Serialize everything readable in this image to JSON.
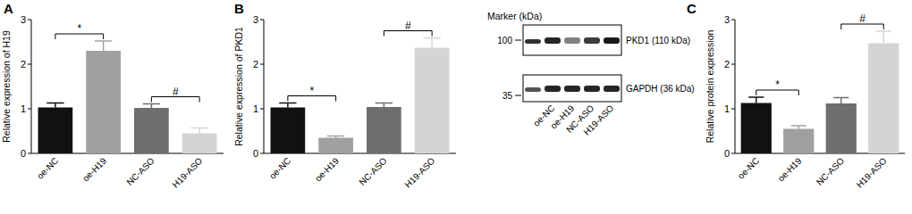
{
  "chart_data": [
    {
      "type": "bar",
      "title": "A",
      "y_label": "Relative expression of H19",
      "categories": [
        "oe-NC",
        "oe-H19",
        "NC-ASO",
        "H19-ASO"
      ],
      "values": [
        1.03,
        2.3,
        1.02,
        0.45
      ],
      "errors": [
        0.1,
        0.22,
        0.09,
        0.12
      ],
      "colors": [
        "#111111",
        "#a0a0a0",
        "#6e6e6e",
        "#d4d4d4"
      ],
      "ylim": [
        0,
        3
      ],
      "yticks": [
        0,
        1,
        2,
        3
      ],
      "annotations": [
        {
          "text": "*",
          "from": 0,
          "to": 1
        },
        {
          "text": "#",
          "from": 2,
          "to": 3
        }
      ]
    },
    {
      "type": "bar",
      "title": "B",
      "y_label": "Relative expression of PKD1",
      "categories": [
        "oe-NC",
        "oe-H19",
        "NC-ASO",
        "H19-ASO"
      ],
      "values": [
        1.03,
        0.35,
        1.04,
        2.37
      ],
      "errors": [
        0.1,
        0.04,
        0.09,
        0.22
      ],
      "colors": [
        "#111111",
        "#a0a0a0",
        "#6e6e6e",
        "#d4d4d4"
      ],
      "ylim": [
        0,
        3
      ],
      "yticks": [
        0,
        1,
        2,
        3
      ],
      "annotations": [
        {
          "text": "*",
          "from": 0,
          "to": 1
        },
        {
          "text": "#",
          "from": 2,
          "to": 3
        }
      ]
    },
    {
      "type": "bar",
      "title": "C",
      "y_label": "Relative protein expression",
      "categories": [
        "oe-NC",
        "oe-H19",
        "NC-ASO",
        "H19-ASO"
      ],
      "values": [
        1.13,
        0.55,
        1.12,
        2.47
      ],
      "errors": [
        0.13,
        0.07,
        0.13,
        0.27
      ],
      "colors": [
        "#111111",
        "#a0a0a0",
        "#6e6e6e",
        "#d4d4d4"
      ],
      "ylim": [
        0,
        3
      ],
      "yticks": [
        0,
        1,
        2,
        3
      ],
      "annotations": [
        {
          "text": "*",
          "from": 0,
          "to": 1
        },
        {
          "text": "#",
          "from": 2,
          "to": 3
        }
      ]
    }
  ],
  "blot": {
    "marker_title": "Marker (kDa)",
    "markers": [
      100,
      35
    ],
    "bands": [
      "PKD1 (110 kDa)",
      "GAPDH (36 kDa)"
    ],
    "lanes": [
      "oe-NC",
      "oe-H19",
      "NC-ASO",
      "H19-ASO"
    ]
  }
}
